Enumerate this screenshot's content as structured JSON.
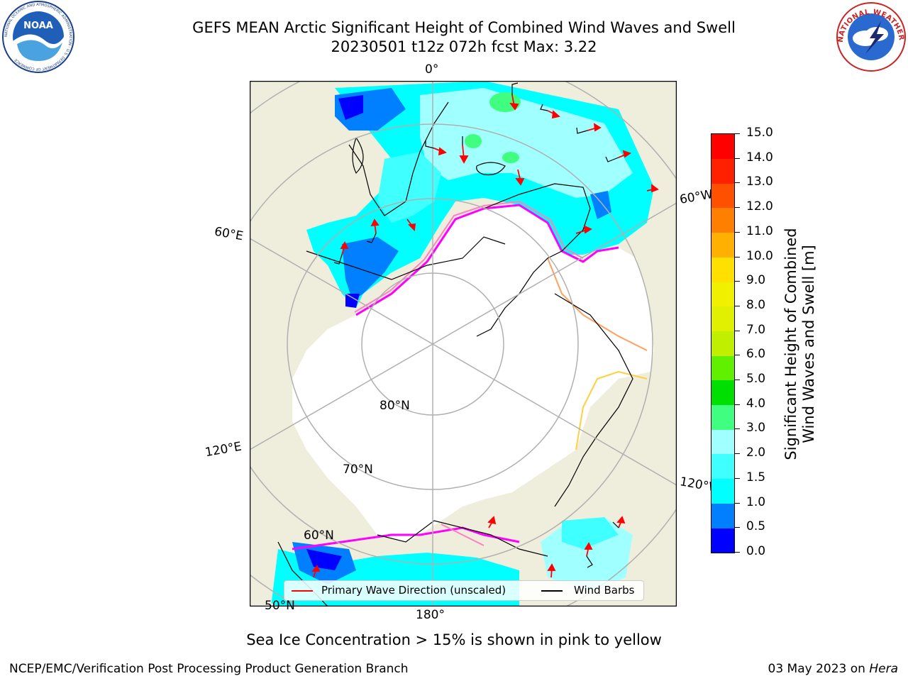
{
  "header": {
    "title_line1": "GEFS MEAN Arctic Significant Height of Combined Wind Waves and Swell",
    "title_line2": "20230501 t12z 072h fcst   Max: 3.22"
  },
  "logos": {
    "left": {
      "icon": "noaa-logo",
      "text": "NOAA",
      "ring_text": "NATIONAL OCEANIC AND ATMOSPHERIC ADMINISTRATION · U.S. DEPARTMENT OF COMMERCE"
    },
    "right": {
      "icon": "nws-logo",
      "ring_text": "NATIONAL WEATHER SERVICE"
    }
  },
  "map": {
    "projection": "north-polar-stereographic",
    "colors": {
      "land": "#efeedd",
      "ice": "#ffffff",
      "grid": "#b0b0b0",
      "coast": "#000000"
    },
    "lon_labels": [
      "0°",
      "60°W",
      "120°W",
      "180°",
      "120°E",
      "60°E"
    ],
    "lat_labels": [
      "80°N",
      "70°N",
      "60°N",
      "50°N"
    ],
    "legend": {
      "wave_direction": "Primary Wave Direction (unscaled)",
      "wind_barbs": "Wind Barbs"
    },
    "legend_colors": {
      "wave_direction": "#ff0000",
      "wind_barbs": "#000000"
    },
    "ice_edge_colors": [
      "#ff00ff",
      "#ff80c0",
      "#ffa060",
      "#ffd040"
    ]
  },
  "colorbar": {
    "label_line1": "Significant Height of Combined",
    "label_line2": "Wind Waves and Swell [m]",
    "ticks": [
      "0.0",
      "0.5",
      "1.0",
      "1.5",
      "2.0",
      "3.0",
      "4.0",
      "5.0",
      "6.0",
      "7.0",
      "8.0",
      "9.0",
      "10.0",
      "11.0",
      "12.0",
      "13.0",
      "14.0",
      "15.0"
    ],
    "colors": [
      "#0000ff",
      "#0080ff",
      "#00ffff",
      "#40ffff",
      "#a0ffff",
      "#40ff80",
      "#00e000",
      "#60f000",
      "#c0f000",
      "#e0f000",
      "#f0f000",
      "#ffe000",
      "#ffb000",
      "#ff8000",
      "#ff5000",
      "#ff2000",
      "#ff0000"
    ]
  },
  "note": "Sea Ice Concentration > 15% is shown in pink to yellow",
  "footer": {
    "left": "NCEP/EMC/Verification Post Processing Product Generation Branch",
    "right_date": "03 May 2023 on",
    "right_machine": "Hera"
  }
}
